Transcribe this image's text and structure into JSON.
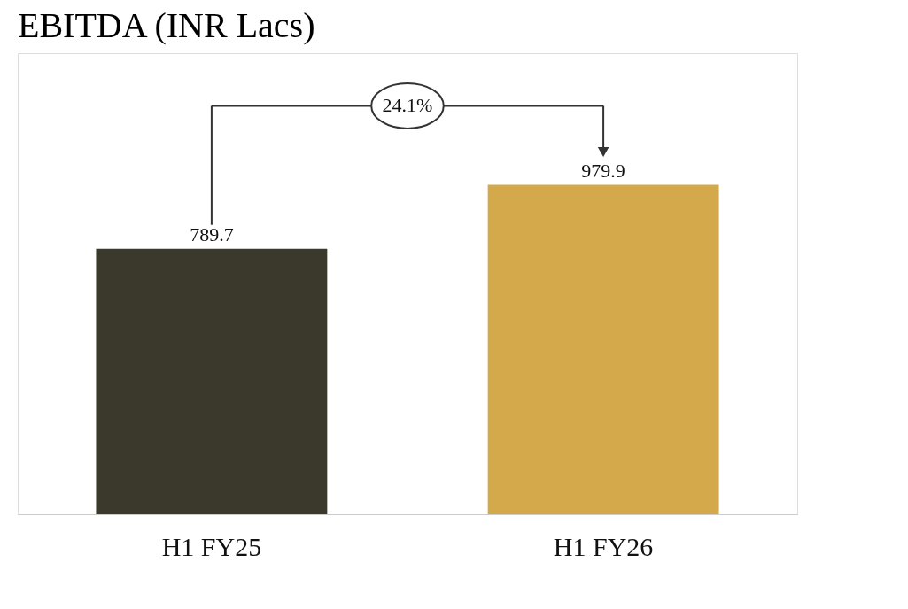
{
  "chart_data": {
    "type": "bar",
    "title": "EBITDA  (INR Lacs)",
    "categories": [
      "H1 FY25",
      "H1 FY26"
    ],
    "values": [
      789.7,
      979.9
    ],
    "colors": [
      "#3b392c",
      "#d4a94b"
    ],
    "data_labels": true,
    "annotations": [
      "24.1%"
    ]
  }
}
